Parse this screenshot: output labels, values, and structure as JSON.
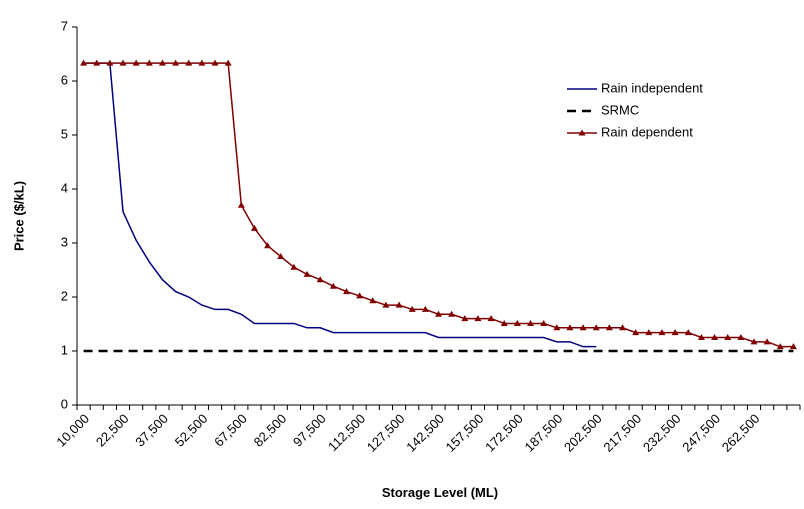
{
  "chart_data": {
    "type": "line",
    "x_label": "Storage Level (ML)",
    "y_label": "Price ($/kL)",
    "categories": [
      "10,000",
      null,
      null,
      "22,500",
      null,
      null,
      "37,500",
      null,
      null,
      "52,500",
      null,
      null,
      "67,500",
      null,
      null,
      "82,500",
      null,
      null,
      "97,500",
      null,
      null,
      "112,500",
      null,
      null,
      "127,500",
      null,
      null,
      "142,500",
      null,
      null,
      "157,500",
      null,
      null,
      "172,500",
      null,
      null,
      "187,500",
      null,
      null,
      "202,500",
      null,
      null,
      "217,500",
      null,
      null,
      "232,500",
      null,
      null,
      "247,500",
      null,
      null,
      "262,500",
      null,
      null,
      null
    ],
    "ylim": [
      0,
      7
    ],
    "yticks": [
      0,
      1,
      2,
      3,
      4,
      5,
      6,
      7
    ],
    "series": [
      {
        "name": "Rain independent",
        "color": "#000080",
        "style": "solid",
        "marker": "none",
        "values": [
          6.33,
          6.33,
          6.33,
          3.58,
          3.05,
          2.65,
          2.32,
          2.1,
          2.0,
          1.85,
          1.77,
          1.77,
          1.68,
          1.51,
          1.51,
          1.51,
          1.51,
          1.43,
          1.43,
          1.34,
          1.34,
          1.34,
          1.34,
          1.34,
          1.34,
          1.34,
          1.34,
          1.25,
          1.25,
          1.25,
          1.25,
          1.25,
          1.25,
          1.25,
          1.25,
          1.25,
          1.17,
          1.17,
          1.08,
          1.08,
          null,
          null,
          null,
          null,
          null,
          null,
          null,
          null,
          null,
          null,
          null,
          null,
          null,
          null,
          null
        ]
      },
      {
        "name": "SRMC",
        "color": "#000000",
        "style": "dashed",
        "marker": "none",
        "values": [
          1,
          1,
          1,
          1,
          1,
          1,
          1,
          1,
          1,
          1,
          1,
          1,
          1,
          1,
          1,
          1,
          1,
          1,
          1,
          1,
          1,
          1,
          1,
          1,
          1,
          1,
          1,
          1,
          1,
          1,
          1,
          1,
          1,
          1,
          1,
          1,
          1,
          1,
          1,
          1,
          1,
          1,
          1,
          1,
          1,
          1,
          1,
          1,
          1,
          1,
          1,
          1,
          1,
          1,
          1
        ]
      },
      {
        "name": "Rain dependent",
        "color": "#800000",
        "style": "solid",
        "marker": "triangle",
        "values": [
          6.33,
          6.33,
          6.33,
          6.33,
          6.33,
          6.33,
          6.33,
          6.33,
          6.33,
          6.33,
          6.33,
          6.33,
          3.7,
          3.27,
          2.95,
          2.75,
          2.55,
          2.42,
          2.32,
          2.2,
          2.1,
          2.02,
          1.93,
          1.85,
          1.85,
          1.77,
          1.77,
          1.68,
          1.68,
          1.6,
          1.6,
          1.6,
          1.51,
          1.51,
          1.51,
          1.51,
          1.43,
          1.43,
          1.43,
          1.43,
          1.43,
          1.43,
          1.34,
          1.34,
          1.34,
          1.34,
          1.34,
          1.25,
          1.25,
          1.25,
          1.25,
          1.17,
          1.17,
          1.08,
          1.08
        ]
      }
    ],
    "legend": "upper-right"
  }
}
